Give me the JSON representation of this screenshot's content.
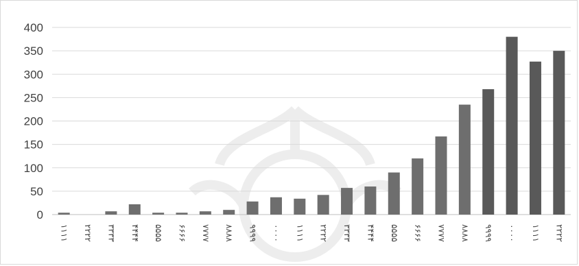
{
  "chart_data": {
    "type": "bar",
    "title": "",
    "xlabel": "",
    "ylabel": "",
    "ylim": [
      0,
      400
    ],
    "yticks": [
      0,
      50,
      100,
      150,
      200,
      250,
      300,
      350,
      400
    ],
    "grid": true,
    "legend": "none",
    "bar_color": "#6e6e6e",
    "bar_color_dark": "#595959",
    "categories": [
      "۱۱۱۱",
      "۲۲۲۲",
      "۳۳۳۳",
      "۴۴۴۴",
      "۵۵۵۵",
      "۶۶۶۶",
      "۷۷۷۷",
      "۸۸۸۸",
      "۹۹۹۹",
      "۰۰۰۰",
      "۱۱۱۱",
      "۲۲۲۲",
      "۳۳۳۳",
      "۴۴۴۴",
      "۵۵۵۵",
      "۶۶۶۶",
      "۷۷۷۷",
      "۸۸۸۸",
      "۹۹۹۹",
      "۰۰۰۰",
      "۱۱۱۱",
      "۲۲۲۲"
    ],
    "values": [
      4,
      0,
      7,
      22,
      4,
      4,
      7,
      10,
      28,
      37,
      34,
      42,
      57,
      60,
      90,
      120,
      167,
      235,
      268,
      380,
      327,
      350
    ]
  }
}
